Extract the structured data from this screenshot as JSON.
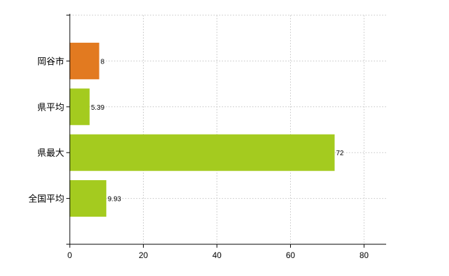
{
  "chart_data": {
    "type": "bar",
    "orientation": "horizontal",
    "categories": [
      "岡谷市",
      "県平均",
      "県最大",
      "全国平均"
    ],
    "values": [
      8,
      5.39,
      72,
      9.93
    ],
    "value_labels": [
      "8",
      "5.39",
      "72",
      "9.93"
    ],
    "bar_colors": [
      "#e27a20",
      "#a4cb1f",
      "#a4cb1f",
      "#a4cb1f"
    ],
    "xlim": [
      0,
      86
    ],
    "x_ticks": [
      0,
      20,
      40,
      60,
      80
    ],
    "grid": true
  }
}
